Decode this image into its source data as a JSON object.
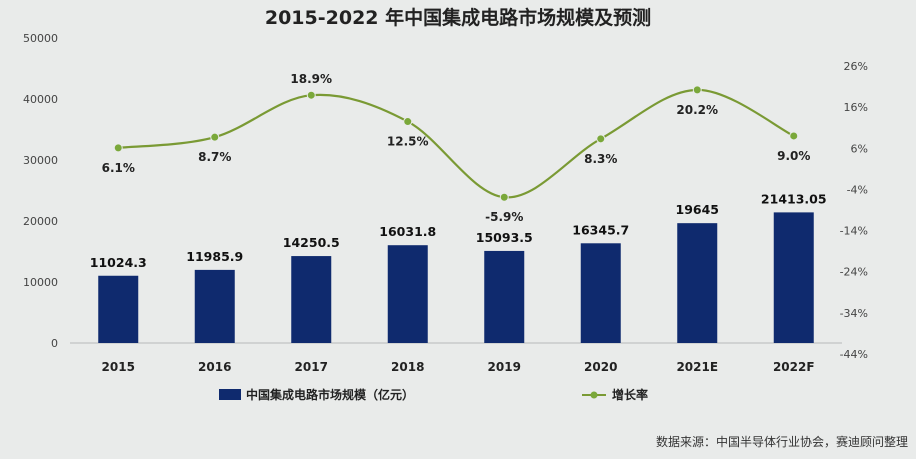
{
  "chart_data": {
    "type": "bar",
    "title": "2015-2022 年中国集成电路市场规模及预测",
    "categories": [
      "2015",
      "2016",
      "2017",
      "2018",
      "2019",
      "2020",
      "2021E",
      "2022F"
    ],
    "series": [
      {
        "name": "中国集成电路市场规模（亿元）",
        "type": "bar",
        "axis": "left",
        "values": [
          11024.3,
          11985.9,
          14250.5,
          16031.8,
          15093.5,
          16345.7,
          19645,
          21413.05
        ],
        "labels": [
          "11024.3",
          "11985.9",
          "14250.5",
          "16031.8",
          "15093.5",
          "16345.7",
          "19645",
          "21413.05"
        ]
      },
      {
        "name": "增长率",
        "type": "line",
        "axis": "right",
        "values": [
          6.1,
          8.7,
          18.9,
          12.5,
          -5.9,
          8.3,
          20.2,
          9.0
        ],
        "labels": [
          "6.1%",
          "8.7%",
          "18.9%",
          "12.5%",
          "-5.9%",
          "8.3%",
          "20.2%",
          "9.0%"
        ]
      }
    ],
    "y_left": {
      "ticks": [
        0,
        10000,
        20000,
        30000,
        40000,
        50000
      ],
      "tick_labels": [
        "0",
        "10000",
        "20000",
        "30000",
        "40000",
        "50000"
      ],
      "ylim": [
        0,
        50000
      ]
    },
    "y_right": {
      "ticks": [
        -44,
        -34,
        -24,
        -14,
        -4,
        6,
        16,
        26
      ],
      "tick_labels": [
        "-44%",
        "-34%",
        "-24%",
        "-14%",
        "-4%",
        "6%",
        "16%",
        "26%"
      ],
      "ylim": [
        -44,
        26
      ]
    },
    "grid": false,
    "legend": "bottom",
    "source": "数据来源：中国半导体行业协会，赛迪顾问整理",
    "colors": {
      "bar": "#0f2a6e",
      "line": "#7a9a34",
      "marker": "#7aa83a",
      "background": "#e9ebea"
    }
  }
}
